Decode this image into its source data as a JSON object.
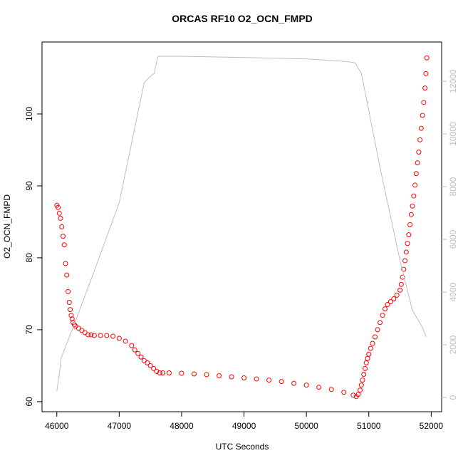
{
  "chart_data": {
    "type": "scatter",
    "title": "ORCAS RF10 O2_OCN_FMPD",
    "x_label": "UTC Seconds",
    "y_label": "O2_OCN_FMPD",
    "xlim": [
      45763,
      52167
    ],
    "xticks": [
      46000,
      47000,
      48000,
      49000,
      50000,
      51000,
      52000
    ],
    "ylim": [
      58.6,
      110.0
    ],
    "yticks": [
      60,
      70,
      80,
      90,
      100
    ],
    "y2lim": [
      -540,
      13490
    ],
    "y2ticks": [
      0,
      2000,
      4000,
      6000,
      8000,
      10000,
      12000
    ],
    "y2_color": "#bebebe",
    "series": [
      {
        "color": "#ff0000",
        "style": "points",
        "x": [
          46000,
          46020,
          46040,
          46060,
          46080,
          46100,
          46120,
          46140,
          46160,
          46180,
          46200,
          46215,
          46230,
          46245,
          46260,
          46280,
          46300,
          46350,
          46400,
          46450,
          46500,
          46550,
          46600,
          46700,
          46800,
          46900,
          47000,
          47100,
          47200,
          47250,
          47300,
          47350,
          47400,
          47450,
          47500,
          47550,
          47600,
          47650,
          47700,
          47800,
          48000,
          48200,
          48400,
          48600,
          48800,
          49000,
          49200,
          49400,
          49600,
          49800,
          50000,
          50200,
          50400,
          50600,
          50750,
          50800,
          50830,
          50860,
          50880,
          50900,
          50920,
          50940,
          50960,
          50980,
          51000,
          51030,
          51060,
          51100,
          51140,
          51180,
          51220,
          51260,
          51300,
          51350,
          51400,
          51450,
          51500,
          51520,
          51540,
          51560,
          51580,
          51600,
          51620,
          51640,
          51660,
          51680,
          51700,
          51720,
          51740,
          51760,
          51780,
          51800,
          51820,
          51840,
          51860,
          51880,
          51900,
          51915,
          51930
        ],
        "values": [
          87.3,
          87.0,
          86.2,
          85.5,
          84.3,
          83.0,
          81.8,
          79.2,
          77.6,
          75.3,
          73.8,
          72.8,
          72.0,
          71.5,
          71.0,
          70.7,
          70.5,
          70.2,
          69.9,
          69.6,
          69.3,
          69.3,
          69.2,
          69.2,
          69.2,
          69.1,
          68.8,
          68.4,
          67.8,
          67.2,
          66.7,
          66.2,
          65.7,
          65.4,
          65.0,
          64.6,
          64.2,
          64.0,
          64.0,
          64.0,
          63.95,
          63.85,
          63.75,
          63.6,
          63.45,
          63.3,
          63.15,
          63.0,
          62.8,
          62.55,
          62.3,
          62.0,
          61.7,
          61.3,
          60.9,
          60.7,
          61.0,
          61.6,
          62.3,
          63.0,
          63.8,
          64.6,
          65.4,
          66.0,
          66.6,
          67.4,
          68.1,
          69.0,
          70.0,
          71.0,
          72.0,
          72.9,
          73.5,
          73.9,
          74.3,
          74.8,
          75.5,
          76.3,
          77.3,
          78.4,
          79.6,
          80.8,
          82.0,
          83.2,
          84.6,
          86.0,
          87.2,
          88.6,
          90.1,
          91.7,
          93.2,
          94.7,
          96.4,
          98.0,
          99.8,
          101.6,
          103.6,
          105.6,
          107.8
        ]
      },
      {
        "color": "#bebebe",
        "style": "line",
        "axis": "y2",
        "x": [
          46000,
          46040,
          46070,
          46300,
          46600,
          47000,
          47400,
          47480,
          47560,
          47620,
          48000,
          49000,
          50000,
          50650,
          50780,
          50880,
          51200,
          51500,
          51700,
          51850,
          51920
        ],
        "values": [
          250,
          900,
          1500,
          2900,
          4800,
          7400,
          11950,
          12150,
          12300,
          12950,
          12950,
          12900,
          12850,
          12750,
          12700,
          12300,
          8500,
          5200,
          3300,
          2700,
          2300
        ]
      }
    ]
  }
}
